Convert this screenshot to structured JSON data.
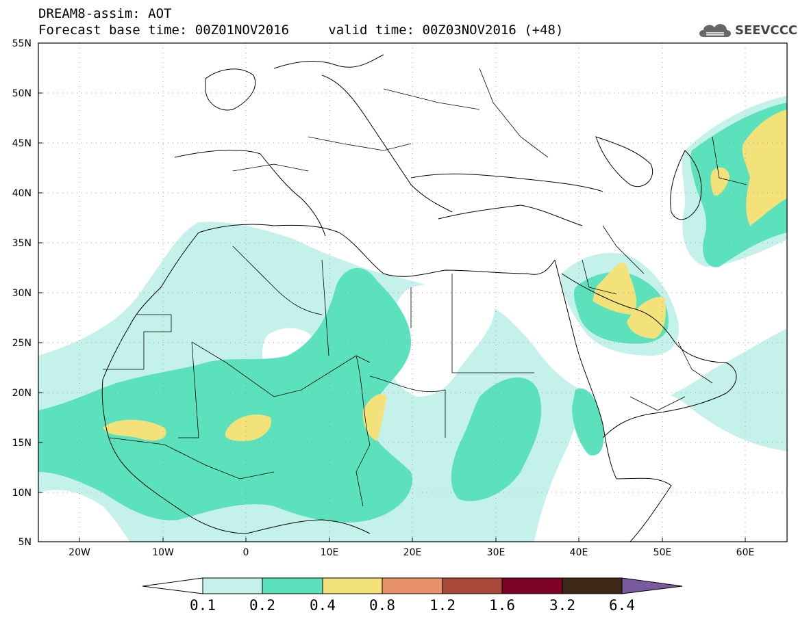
{
  "header": {
    "line1": "DREAM8-assim: AOT",
    "forecast_label": "Forecast base time: 00Z01NOV2016",
    "valid_label": "valid time: 00Z03NOV2016 (+48)"
  },
  "logo": {
    "text": "SEEVCCC"
  },
  "axes": {
    "lat_labels": [
      "55N",
      "50N",
      "45N",
      "40N",
      "35N",
      "30N",
      "25N",
      "20N",
      "15N",
      "10N",
      "5N"
    ],
    "lon_labels": [
      "20W",
      "10W",
      "0",
      "10E",
      "20E",
      "30E",
      "40E",
      "50E",
      "60E"
    ]
  },
  "colorbar": {
    "labels": [
      "0.1",
      "0.2",
      "0.4",
      "0.8",
      "1.2",
      "1.6",
      "3.2",
      "6.4"
    ],
    "colors": [
      "#ffffff",
      "#c4f1ea",
      "#5ce1bd",
      "#f3e27a",
      "#e8906a",
      "#a9483a",
      "#7d0025",
      "#3d2817",
      "#7a5a9e"
    ]
  },
  "colors": {
    "aot_low": "#c4f1ea",
    "aot_mid": "#5ce1bd",
    "aot_high": "#f3e27a"
  }
}
